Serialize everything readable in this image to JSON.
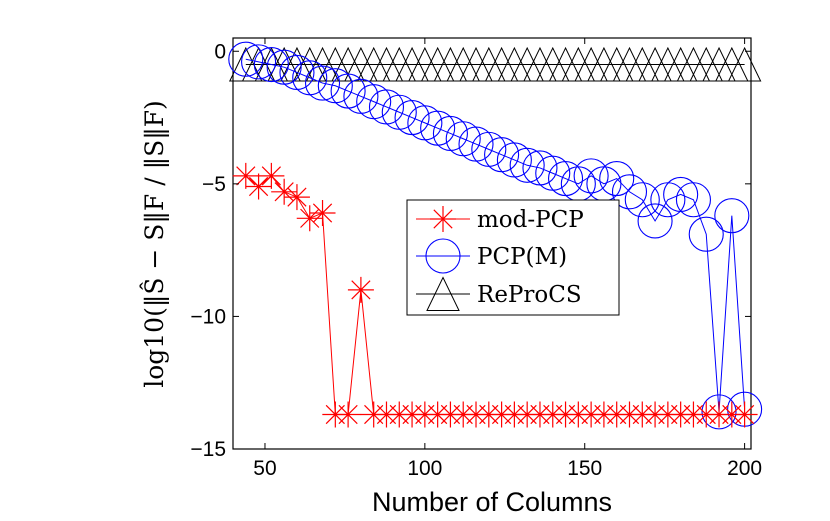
{
  "chart_data": {
    "type": "line",
    "xlabel": "Number of Columns",
    "ylabel": "log10(‖Ŝ − S‖F / ‖S‖F)",
    "xlim": [
      40,
      202
    ],
    "ylim": [
      -15,
      0.5
    ],
    "xticks": [
      50,
      100,
      150,
      200
    ],
    "yticks": [
      0,
      -5,
      -10,
      -15
    ],
    "grid": false,
    "legend_position": "center-right",
    "series": [
      {
        "name": "mod-PCP",
        "color": "#ff0000",
        "marker": "asterisk",
        "x": [
          44,
          48,
          52,
          56,
          60,
          64,
          68,
          72,
          76,
          80,
          84,
          88,
          92,
          96,
          100,
          104,
          108,
          112,
          116,
          120,
          124,
          128,
          132,
          136,
          140,
          144,
          148,
          152,
          156,
          160,
          164,
          168,
          172,
          176,
          180,
          184,
          188,
          192,
          196,
          200
        ],
        "values": [
          -4.7,
          -5.1,
          -4.7,
          -5.3,
          -5.5,
          -6.3,
          -6.1,
          -13.7,
          -13.7,
          -9.0,
          -13.7,
          -13.7,
          -13.7,
          -13.7,
          -13.7,
          -13.7,
          -13.7,
          -13.7,
          -13.7,
          -13.7,
          -13.7,
          -13.7,
          -13.7,
          -13.7,
          -13.7,
          -13.7,
          -13.7,
          -13.7,
          -13.7,
          -13.7,
          -13.7,
          -13.7,
          -13.7,
          -13.7,
          -13.7,
          -13.7,
          -13.7,
          -13.7,
          -13.7,
          -13.7
        ]
      },
      {
        "name": "PCP(M)",
        "color": "#0000ff",
        "marker": "circle",
        "x": [
          44,
          48,
          52,
          56,
          60,
          64,
          68,
          72,
          76,
          80,
          84,
          88,
          92,
          96,
          100,
          104,
          108,
          112,
          116,
          120,
          124,
          128,
          132,
          136,
          140,
          144,
          148,
          152,
          156,
          160,
          164,
          168,
          172,
          176,
          180,
          184,
          188,
          192,
          196,
          200
        ],
        "values": [
          -0.3,
          -0.4,
          -0.5,
          -0.6,
          -0.8,
          -1.0,
          -1.2,
          -1.3,
          -1.5,
          -1.7,
          -1.9,
          -2.1,
          -2.3,
          -2.5,
          -2.7,
          -2.9,
          -3.1,
          -3.3,
          -3.5,
          -3.7,
          -3.9,
          -4.1,
          -4.3,
          -4.4,
          -4.6,
          -4.8,
          -5.0,
          -4.7,
          -5.0,
          -4.8,
          -5.3,
          -5.6,
          -6.4,
          -5.6,
          -5.4,
          -5.6,
          -6.9,
          -13.6,
          -6.2,
          -13.5
        ]
      },
      {
        "name": "ReProCS",
        "color": "#000000",
        "marker": "triangle",
        "x": [
          44,
          48,
          52,
          56,
          60,
          64,
          68,
          72,
          76,
          80,
          84,
          88,
          92,
          96,
          100,
          104,
          108,
          112,
          116,
          120,
          124,
          128,
          132,
          136,
          140,
          144,
          148,
          152,
          156,
          160,
          164,
          168,
          172,
          176,
          180,
          184,
          188,
          192,
          196,
          200
        ],
        "values": [
          -0.5,
          -0.5,
          -0.5,
          -0.5,
          -0.5,
          -0.5,
          -0.5,
          -0.5,
          -0.5,
          -0.5,
          -0.5,
          -0.5,
          -0.5,
          -0.5,
          -0.5,
          -0.5,
          -0.5,
          -0.5,
          -0.5,
          -0.5,
          -0.5,
          -0.5,
          -0.5,
          -0.5,
          -0.5,
          -0.5,
          -0.5,
          -0.5,
          -0.5,
          -0.5,
          -0.5,
          -0.5,
          -0.5,
          -0.5,
          -0.5,
          -0.5,
          -0.5,
          -0.5,
          -0.5,
          -0.5
        ]
      }
    ]
  }
}
